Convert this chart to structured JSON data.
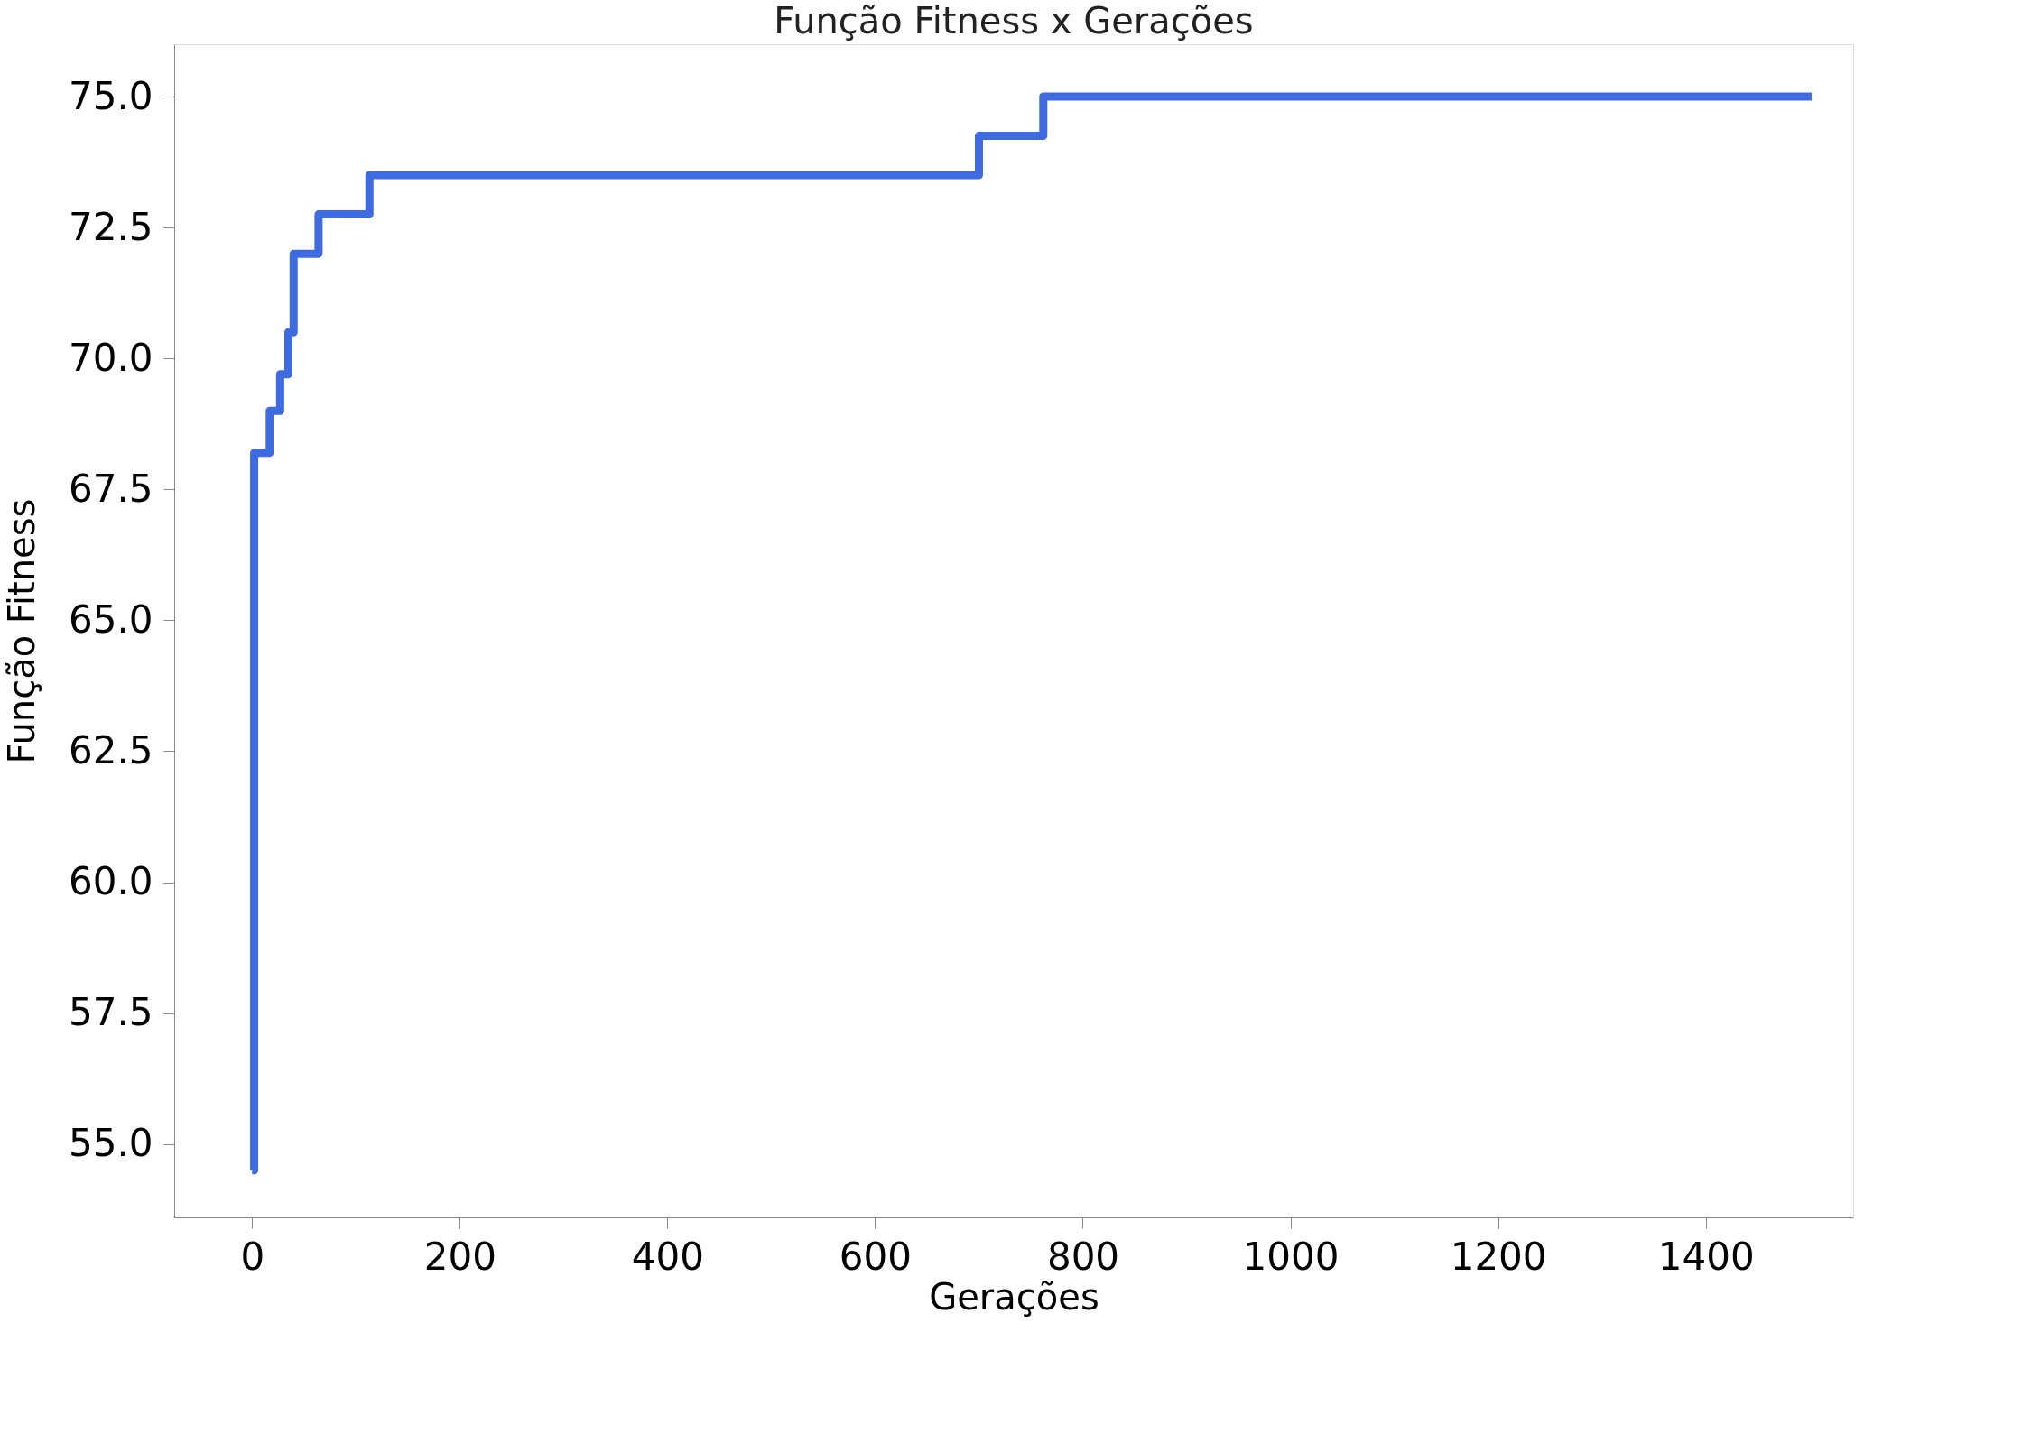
{
  "chart_data": {
    "type": "step",
    "title": "Função Fitness x Gerações",
    "xlabel": "Gerações",
    "ylabel": "Função Fitness",
    "x": [
      0,
      2,
      17,
      27,
      35,
      40,
      64,
      113,
      700,
      762,
      1502
    ],
    "series": [
      {
        "color": "#3f6be0",
        "values": [
          54.5,
          68.2,
          69.0,
          69.7,
          70.5,
          72.0,
          72.75,
          73.5,
          74.25,
          75.0,
          75.0
        ]
      }
    ],
    "xlim": [
      -75,
      1542
    ],
    "ylim": [
      53.6,
      76.0
    ],
    "xticks": [
      0,
      200,
      400,
      600,
      800,
      1000,
      1200,
      1400
    ],
    "yticks": [
      {
        "value": 55,
        "label": "55.0"
      },
      {
        "value": 57.5,
        "label": "57.5"
      },
      {
        "value": 60,
        "label": "60.0"
      },
      {
        "value": 62.5,
        "label": "62.5"
      },
      {
        "value": 65,
        "label": "65.0"
      },
      {
        "value": 67.5,
        "label": "67.5"
      },
      {
        "value": 70,
        "label": "70.0"
      },
      {
        "value": 72.5,
        "label": "72.5"
      },
      {
        "value": 75,
        "label": "75.0"
      }
    ],
    "grid": false,
    "line_style": "solid",
    "marker": "none"
  }
}
